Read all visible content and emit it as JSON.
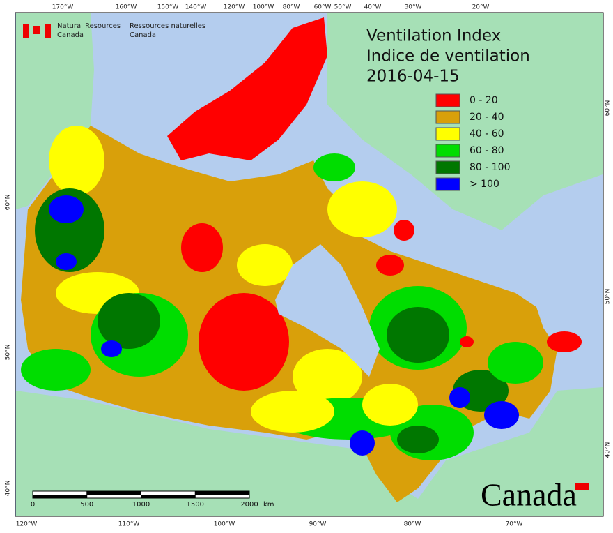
{
  "header": {
    "agency_en_line1": "Natural Resources",
    "agency_en_line2": "Canada",
    "agency_fr_line1": "Ressources naturelles",
    "agency_fr_line2": "Canada"
  },
  "title": {
    "line1": "Ventilation Index",
    "line2": "Indice de ventilation",
    "date": "2016-04-15"
  },
  "legend": [
    {
      "label": "0 - 20",
      "color": "#ff0000"
    },
    {
      "label": "20 - 40",
      "color": "#d9a00a"
    },
    {
      "label": "40 - 60",
      "color": "#ffff00"
    },
    {
      "label": "60 - 80",
      "color": "#00dd00"
    },
    {
      "label": "80 - 100",
      "color": "#007700"
    },
    {
      "label": "> 100",
      "color": "#0000ff"
    }
  ],
  "graticule": {
    "top": [
      "170°W",
      "160°W",
      "150°W",
      "140°W",
      "120°W",
      "100°W",
      "80°W",
      "60°W",
      "50°W",
      "40°W",
      "30°W",
      "20°W"
    ],
    "bottom": [
      "120°W",
      "110°W",
      "100°W",
      "90°W",
      "80°W",
      "70°W"
    ],
    "left": [
      "60°N",
      "50°N",
      "40°N"
    ],
    "right": [
      "60°N",
      "50°N",
      "40°N"
    ]
  },
  "scale_bar": {
    "ticks": [
      0,
      500,
      1000,
      1500,
      2000
    ],
    "unit": "km"
  },
  "wordmark": "Canada"
}
